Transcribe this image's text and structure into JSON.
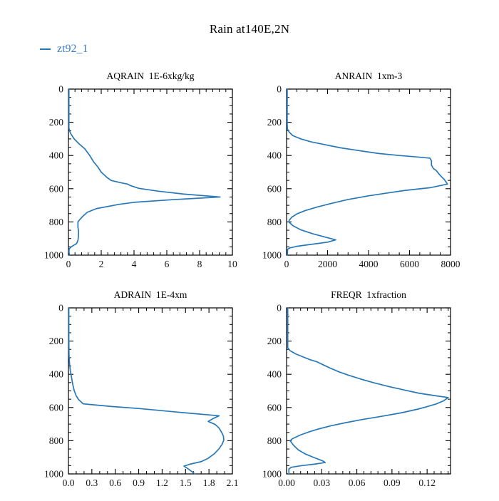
{
  "figure": {
    "title": "Rain at140E,2N",
    "legend": {
      "label": "zt92_1",
      "color": "#3b7cc4"
    },
    "line_color": "#2878b8",
    "axis_color": "#000000",
    "background": "#ffffff"
  },
  "chart_data": [
    {
      "type": "line",
      "name": "AQRAIN",
      "title": "AQRAIN  1E-6xkg/kg",
      "xlabel": "",
      "ylabel": "",
      "grid": false,
      "point_format": "[value, pressure_hPa]",
      "xlim": [
        0,
        10
      ],
      "x_major_ticks": [
        0,
        2,
        4,
        6,
        8,
        10
      ],
      "x_tick_labels": [
        "0",
        "2",
        "4",
        "6",
        "8",
        "10"
      ],
      "x_minor_step": 0.4,
      "ylim": [
        1000,
        0
      ],
      "y_major_ticks": [
        0,
        200,
        400,
        600,
        800,
        1000
      ],
      "y_tick_labels": [
        "0",
        "200",
        "400",
        "600",
        "800",
        "1000"
      ],
      "y_minor_step": 50,
      "series": [
        {
          "name": "zt92_1",
          "color": "#2878b8",
          "points": [
            [
              0.03,
              0
            ],
            [
              0.03,
              120
            ],
            [
              0.03,
              235
            ],
            [
              0.07,
              252
            ],
            [
              0.15,
              270
            ],
            [
              0.35,
              300
            ],
            [
              0.65,
              330
            ],
            [
              1.0,
              360
            ],
            [
              1.3,
              400
            ],
            [
              1.55,
              440
            ],
            [
              1.8,
              470
            ],
            [
              2.0,
              500
            ],
            [
              2.35,
              532
            ],
            [
              2.6,
              550
            ],
            [
              3.1,
              562
            ],
            [
              3.6,
              572
            ],
            [
              3.8,
              582
            ],
            [
              4.3,
              598
            ],
            [
              5.5,
              615
            ],
            [
              7.0,
              632
            ],
            [
              9.25,
              650
            ],
            [
              6.5,
              665
            ],
            [
              4.0,
              682
            ],
            [
              3.1,
              694
            ],
            [
              1.7,
              720
            ],
            [
              1.15,
              742
            ],
            [
              0.9,
              764
            ],
            [
              0.7,
              785
            ],
            [
              0.58,
              800
            ],
            [
              0.58,
              830
            ],
            [
              0.62,
              862
            ],
            [
              0.6,
              895
            ],
            [
              0.58,
              910
            ],
            [
              0.5,
              930
            ],
            [
              0.17,
              950
            ],
            [
              0.05,
              962
            ],
            [
              0.03,
              978
            ],
            [
              0.06,
              1000
            ]
          ]
        }
      ]
    },
    {
      "type": "line",
      "name": "ANRAIN",
      "title": "ANRAIN  1xm-3",
      "xlabel": "",
      "ylabel": "",
      "grid": false,
      "point_format": "[value, pressure_hPa]",
      "xlim": [
        0,
        8000
      ],
      "x_major_ticks": [
        0,
        2000,
        4000,
        6000,
        8000
      ],
      "x_tick_labels": [
        "0",
        "2000",
        "4000",
        "6000",
        "8000"
      ],
      "x_minor_step": 500,
      "ylim": [
        1000,
        0
      ],
      "y_major_ticks": [
        0,
        200,
        400,
        600,
        800,
        1000
      ],
      "y_tick_labels": [
        "0",
        "200",
        "400",
        "600",
        "800",
        "1000"
      ],
      "y_minor_step": 50,
      "series": [
        {
          "name": "zt92_1",
          "color": "#2878b8",
          "points": [
            [
              30,
              0
            ],
            [
              30,
              200
            ],
            [
              40,
              240
            ],
            [
              120,
              258
            ],
            [
              300,
              280
            ],
            [
              700,
              300
            ],
            [
              1200,
              318
            ],
            [
              1800,
              333
            ],
            [
              2600,
              353
            ],
            [
              3500,
              370
            ],
            [
              4500,
              388
            ],
            [
              5500,
              400
            ],
            [
              6300,
              408
            ],
            [
              7000,
              416
            ],
            [
              7070,
              432
            ],
            [
              7070,
              458
            ],
            [
              7160,
              478
            ],
            [
              7300,
              490
            ],
            [
              7480,
              518
            ],
            [
              7700,
              545
            ],
            [
              7850,
              572
            ],
            [
              7000,
              594
            ],
            [
              5800,
              610
            ],
            [
              4800,
              628
            ],
            [
              4000,
              643
            ],
            [
              3000,
              665
            ],
            [
              2200,
              688
            ],
            [
              1500,
              710
            ],
            [
              900,
              732
            ],
            [
              500,
              752
            ],
            [
              250,
              772
            ],
            [
              130,
              790
            ],
            [
              110,
              800
            ],
            [
              300,
              822
            ],
            [
              700,
              848
            ],
            [
              1300,
              872
            ],
            [
              2000,
              895
            ],
            [
              2400,
              908
            ],
            [
              2000,
              922
            ],
            [
              1200,
              935
            ],
            [
              500,
              947
            ],
            [
              150,
              957
            ],
            [
              50,
              965
            ],
            [
              40,
              1000
            ]
          ]
        }
      ]
    },
    {
      "type": "line",
      "name": "ADRAIN",
      "title": "ADRAIN  1E-4xm",
      "xlabel": "",
      "ylabel": "",
      "grid": false,
      "point_format": "[value, pressure_hPa]",
      "xlim": [
        0,
        2.1
      ],
      "x_major_ticks": [
        0,
        0.3,
        0.6,
        0.9,
        1.2,
        1.5,
        1.8,
        2.1
      ],
      "x_tick_labels": [
        "0.0",
        "0.3",
        "0.6",
        "0.9",
        "1.2",
        "1.5",
        "1.8",
        "2.1"
      ],
      "x_minor_step": 0.1,
      "ylim": [
        1000,
        0
      ],
      "y_major_ticks": [
        0,
        200,
        400,
        600,
        800,
        1000
      ],
      "y_tick_labels": [
        "0",
        "200",
        "400",
        "600",
        "800",
        "1000"
      ],
      "y_minor_step": 50,
      "series": [
        {
          "name": "zt92_1",
          "color": "#2878b8",
          "points": [
            [
              0.005,
              0
            ],
            [
              0.005,
              200
            ],
            [
              0.008,
              290
            ],
            [
              0.015,
              340
            ],
            [
              0.025,
              380
            ],
            [
              0.04,
              420
            ],
            [
              0.055,
              460
            ],
            [
              0.075,
              500
            ],
            [
              0.1,
              530
            ],
            [
              0.13,
              552
            ],
            [
              0.17,
              570
            ],
            [
              0.19,
              578
            ],
            [
              0.55,
              594
            ],
            [
              0.9,
              606
            ],
            [
              1.4,
              628
            ],
            [
              1.93,
              650
            ],
            [
              1.86,
              665
            ],
            [
              1.79,
              684
            ],
            [
              1.88,
              702
            ],
            [
              1.93,
              724
            ],
            [
              1.96,
              748
            ],
            [
              1.985,
              772
            ],
            [
              1.99,
              796
            ],
            [
              1.97,
              820
            ],
            [
              1.93,
              848
            ],
            [
              1.87,
              878
            ],
            [
              1.79,
              906
            ],
            [
              1.7,
              926
            ],
            [
              1.56,
              941
            ],
            [
              1.48,
              953
            ],
            [
              1.54,
              972
            ],
            [
              1.62,
              1000
            ]
          ]
        }
      ]
    },
    {
      "type": "line",
      "name": "FREQR",
      "title": "FREQR  1xfraction",
      "xlabel": "",
      "ylabel": "",
      "grid": false,
      "point_format": "[value, pressure_hPa]",
      "xlim": [
        0,
        0.14
      ],
      "x_major_ticks": [
        0,
        0.03,
        0.06,
        0.09,
        0.12
      ],
      "x_tick_labels": [
        "0.00",
        "0.03",
        "0.06",
        "0.09",
        "0.12"
      ],
      "x_minor_step": 0.006,
      "ylim": [
        1000,
        0
      ],
      "y_major_ticks": [
        0,
        200,
        400,
        600,
        800,
        1000
      ],
      "y_tick_labels": [
        "0",
        "200",
        "400",
        "600",
        "800",
        "1000"
      ],
      "y_minor_step": 50,
      "series": [
        {
          "name": "zt92_1",
          "color": "#2878b8",
          "points": [
            [
              0.001,
              0
            ],
            [
              0.001,
              240
            ],
            [
              0.003,
              258
            ],
            [
              0.008,
              278
            ],
            [
              0.014,
              295
            ],
            [
              0.02,
              312
            ],
            [
              0.026,
              325
            ],
            [
              0.031,
              342
            ],
            [
              0.037,
              362
            ],
            [
              0.045,
              386
            ],
            [
              0.053,
              406
            ],
            [
              0.063,
              428
            ],
            [
              0.075,
              452
            ],
            [
              0.088,
              475
            ],
            [
              0.1,
              494
            ],
            [
              0.113,
              514
            ],
            [
              0.127,
              529
            ],
            [
              0.138,
              540
            ],
            [
              0.134,
              560
            ],
            [
              0.128,
              578
            ],
            [
              0.119,
              597
            ],
            [
              0.112,
              610
            ],
            [
              0.098,
              632
            ],
            [
              0.082,
              652
            ],
            [
              0.065,
              672
            ],
            [
              0.05,
              692
            ],
            [
              0.038,
              710
            ],
            [
              0.028,
              728
            ],
            [
              0.02,
              745
            ],
            [
              0.012,
              765
            ],
            [
              0.005,
              788
            ],
            [
              0.003,
              800
            ],
            [
              0.006,
              828
            ],
            [
              0.01,
              855
            ],
            [
              0.016,
              880
            ],
            [
              0.024,
              903
            ],
            [
              0.031,
              922
            ],
            [
              0.033,
              931
            ],
            [
              0.024,
              941
            ],
            [
              0.012,
              951
            ],
            [
              0.004,
              960
            ],
            [
              0.002,
              970
            ],
            [
              0.002,
              1000
            ]
          ]
        }
      ]
    }
  ]
}
